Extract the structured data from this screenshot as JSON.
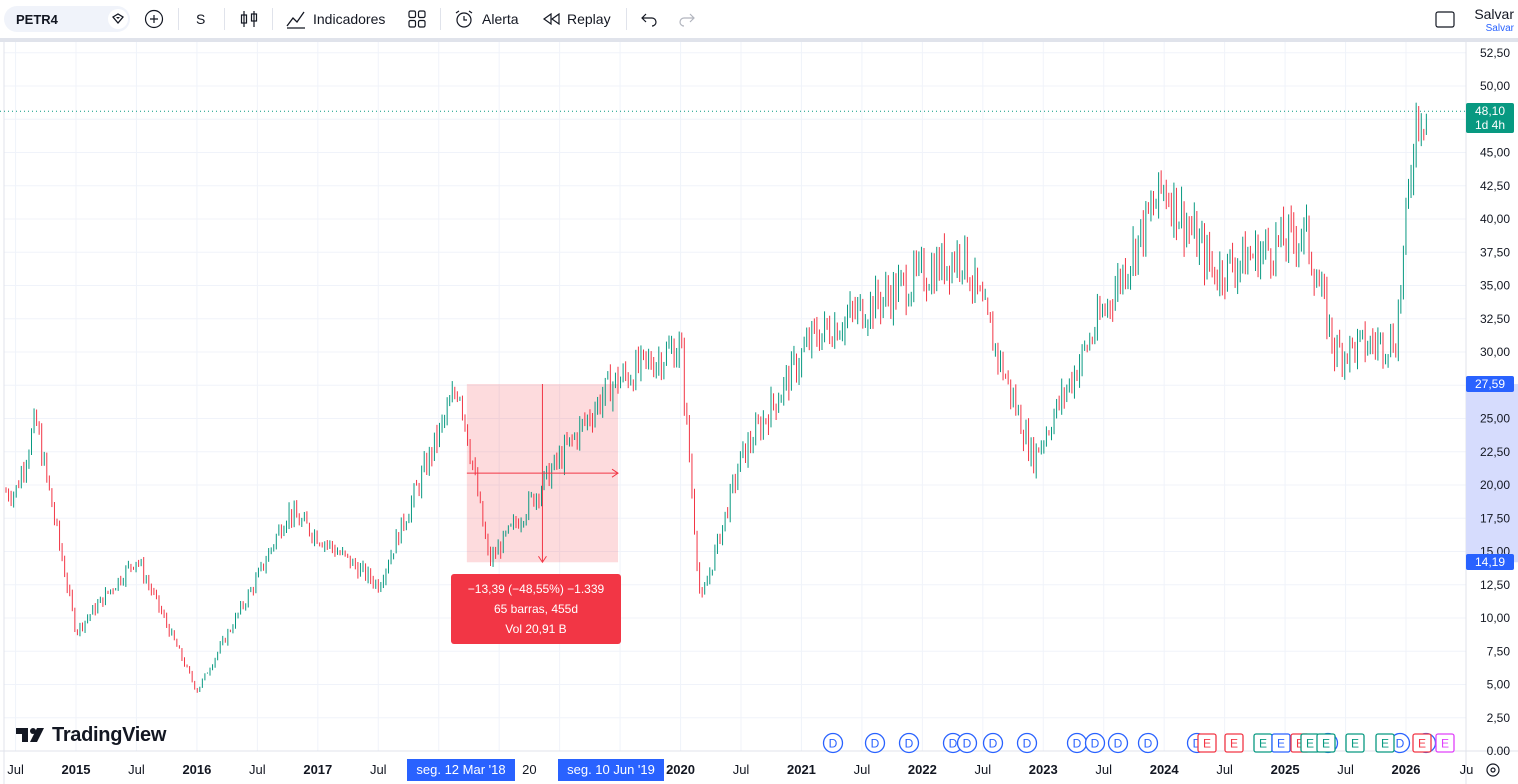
{
  "toolbar": {
    "symbol": "PETR4",
    "interval": "S",
    "indicators_label": "Indicadores",
    "alert_label": "Alerta",
    "replay_label": "Replay",
    "save_label": "Salvar",
    "save_sub": "Salvar"
  },
  "colors": {
    "up": "#089981",
    "down": "#f23645",
    "measure": "#f23645",
    "accent": "#2962ff"
  },
  "price_axis": {
    "ticks": [
      "52,50",
      "50,00",
      "45,00",
      "42,50",
      "40,00",
      "37,50",
      "35,00",
      "32,50",
      "30,00",
      "25,00",
      "22,50",
      "20,00",
      "17,50",
      "15,00",
      "12,50",
      "10,00",
      "7,50",
      "5,00",
      "2,50",
      "0.00"
    ],
    "last_price": "48,10",
    "countdown": "1d 4h",
    "range_high": "27,59",
    "range_low": "14,19"
  },
  "time_axis": {
    "labels": [
      "Jul",
      "2015",
      "Jul",
      "2016",
      "Jul",
      "2017",
      "Jul",
      "20",
      "2020",
      "Jul",
      "2021",
      "Jul",
      "2022",
      "Jul",
      "2023",
      "Jul",
      "2024",
      "Jul",
      "2025",
      "Jul",
      "2026",
      "Ju"
    ],
    "range_start": "seg. 12 Mar '18",
    "range_end": "seg. 10 Jun '19"
  },
  "measure": {
    "line1": "−13,39 (−48,55%) −1.339",
    "line2": "65 barras, 455d",
    "line3": "Vol 20,91 B"
  },
  "events": {
    "dividends": [
      "D",
      "D",
      "D",
      "D",
      "D",
      "D",
      "D",
      "D",
      "D",
      "D",
      "D",
      "D",
      "D",
      "D",
      "D"
    ],
    "earnings": [
      "E",
      "E",
      "E",
      "E",
      "E",
      "E",
      "E",
      "E",
      "E",
      "E",
      "E"
    ]
  },
  "logo": "TradingView",
  "chart_data": {
    "type": "candlestick",
    "symbol": "PETR4",
    "interval": "S",
    "y_range": [
      0,
      53
    ],
    "x_range": [
      "2014-07",
      "2026-07"
    ],
    "key_points": [
      {
        "date": "2014-07",
        "close": 19.5
      },
      {
        "date": "2014-09",
        "close": 24.8
      },
      {
        "date": "2015-01",
        "close": 9.0
      },
      {
        "date": "2015-07",
        "close": 14.5
      },
      {
        "date": "2016-01",
        "close": 4.5
      },
      {
        "date": "2016-07",
        "close": 13.0
      },
      {
        "date": "2016-10",
        "close": 18.0
      },
      {
        "date": "2017-07",
        "close": 12.5
      },
      {
        "date": "2018-03",
        "close": 27.59
      },
      {
        "date": "2018-06",
        "close": 14.19
      },
      {
        "date": "2019-06",
        "close": 27.5
      },
      {
        "date": "2020-01",
        "close": 30.5
      },
      {
        "date": "2020-03",
        "close": 11.0
      },
      {
        "date": "2020-07",
        "close": 22.0
      },
      {
        "date": "2021-02",
        "close": 31.0
      },
      {
        "date": "2022-05",
        "close": 37.5
      },
      {
        "date": "2022-12",
        "close": 22.0
      },
      {
        "date": "2024-01",
        "close": 42.5
      },
      {
        "date": "2024-06",
        "close": 36.0
      },
      {
        "date": "2025-03",
        "close": 39.0
      },
      {
        "date": "2025-06",
        "close": 30.0
      },
      {
        "date": "2025-12",
        "close": 31.0
      },
      {
        "date": "2026-02",
        "close": 48.1
      }
    ],
    "measure": {
      "from": "2018-03-12",
      "to": "2019-06-10",
      "change": -13.39,
      "change_pct": -48.55,
      "bars": 65,
      "days": 455
    }
  }
}
